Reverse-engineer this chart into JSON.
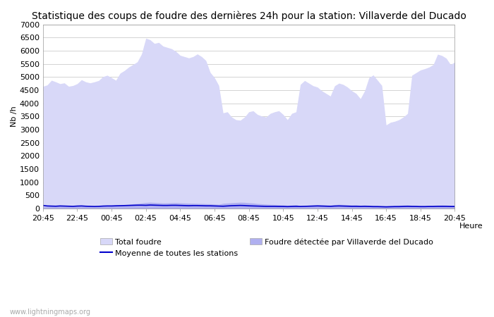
{
  "title": "Statistique des coups de foudre des dernières 24h pour la station: Villaverde del Ducado",
  "xlabel": "Heure",
  "ylabel": "Nb /h",
  "xlim": [
    0,
    96
  ],
  "ylim": [
    0,
    7000
  ],
  "yticks": [
    0,
    500,
    1000,
    1500,
    2000,
    2500,
    3000,
    3500,
    4000,
    4500,
    5000,
    5500,
    6000,
    6500,
    7000
  ],
  "xtick_labels": [
    "20:45",
    "22:45",
    "00:45",
    "02:45",
    "04:45",
    "06:45",
    "08:45",
    "10:45",
    "12:45",
    "14:45",
    "16:45",
    "18:45",
    "20:45"
  ],
  "xtick_positions": [
    0,
    8,
    16,
    24,
    32,
    40,
    48,
    56,
    64,
    72,
    80,
    88,
    96
  ],
  "fill_color_total": "#d8d8f8",
  "fill_color_local": "#b0b0f0",
  "line_color_moyenne": "#0000cc",
  "bg_color": "#ffffff",
  "grid_color": "#cccccc",
  "title_fontsize": 10,
  "axis_fontsize": 8,
  "watermark": "www.lightningmaps.org",
  "legend_labels": [
    "Total foudre",
    "Moyenne de toutes les stations",
    "Foudre détectée par Villaverde del Ducado"
  ],
  "total_foudre": [
    4650,
    4700,
    4880,
    4820,
    4750,
    4780,
    4650,
    4680,
    4750,
    4900,
    4820,
    4780,
    4820,
    4870,
    5020,
    5070,
    4980,
    4880,
    5150,
    5250,
    5380,
    5480,
    5580,
    5880,
    6480,
    6420,
    6280,
    6320,
    6180,
    6130,
    6080,
    5980,
    5830,
    5780,
    5730,
    5780,
    5880,
    5780,
    5630,
    5180,
    4980,
    4680,
    3640,
    3680,
    3480,
    3380,
    3360,
    3480,
    3680,
    3720,
    3580,
    3520,
    3480,
    3620,
    3680,
    3720,
    3580,
    3380,
    3620,
    3680,
    4720,
    4870,
    4770,
    4670,
    4620,
    4480,
    4380,
    4280,
    4670,
    4770,
    4720,
    4620,
    4480,
    4380,
    4180,
    4480,
    4980,
    5080,
    4880,
    4680,
    3180,
    3280,
    3320,
    3380,
    3480,
    3620,
    5070,
    5170,
    5270,
    5320,
    5380,
    5480,
    5870,
    5820,
    5720,
    5480,
    5570
  ],
  "local_foudre": [
    80,
    90,
    95,
    100,
    110,
    100,
    95,
    90,
    100,
    110,
    100,
    90,
    85,
    90,
    100,
    110,
    120,
    130,
    140,
    150,
    160,
    180,
    190,
    210,
    230,
    240,
    230,
    220,
    210,
    215,
    220,
    225,
    215,
    210,
    205,
    200,
    195,
    190,
    185,
    180,
    170,
    160,
    200,
    210,
    220,
    230,
    240,
    235,
    220,
    210,
    190,
    180,
    170,
    160,
    155,
    150,
    140,
    130,
    140,
    150,
    110,
    120,
    130,
    140,
    150,
    145,
    140,
    135,
    150,
    160,
    155,
    150,
    140,
    145,
    130,
    135,
    130,
    125,
    120,
    115,
    110,
    120,
    125,
    130,
    135,
    140,
    130,
    125,
    120,
    115,
    120,
    125,
    130,
    135,
    130,
    125,
    120
  ],
  "moyenne": [
    120,
    100,
    95,
    90,
    100,
    95,
    90,
    85,
    95,
    100,
    90,
    85,
    80,
    85,
    95,
    100,
    100,
    105,
    110,
    115,
    120,
    125,
    130,
    130,
    125,
    135,
    130,
    125,
    120,
    120,
    125,
    125,
    120,
    115,
    110,
    115,
    115,
    110,
    105,
    105,
    100,
    95,
    90,
    100,
    110,
    115,
    120,
    115,
    105,
    100,
    95,
    90,
    85,
    85,
    85,
    80,
    80,
    75,
    80,
    85,
    80,
    85,
    90,
    95,
    100,
    95,
    90,
    85,
    95,
    100,
    95,
    90,
    85,
    85,
    80,
    85,
    80,
    75,
    75,
    70,
    65,
    70,
    75,
    75,
    80,
    85,
    80,
    80,
    75,
    75,
    80,
    80,
    85,
    85,
    85,
    80,
    80
  ]
}
